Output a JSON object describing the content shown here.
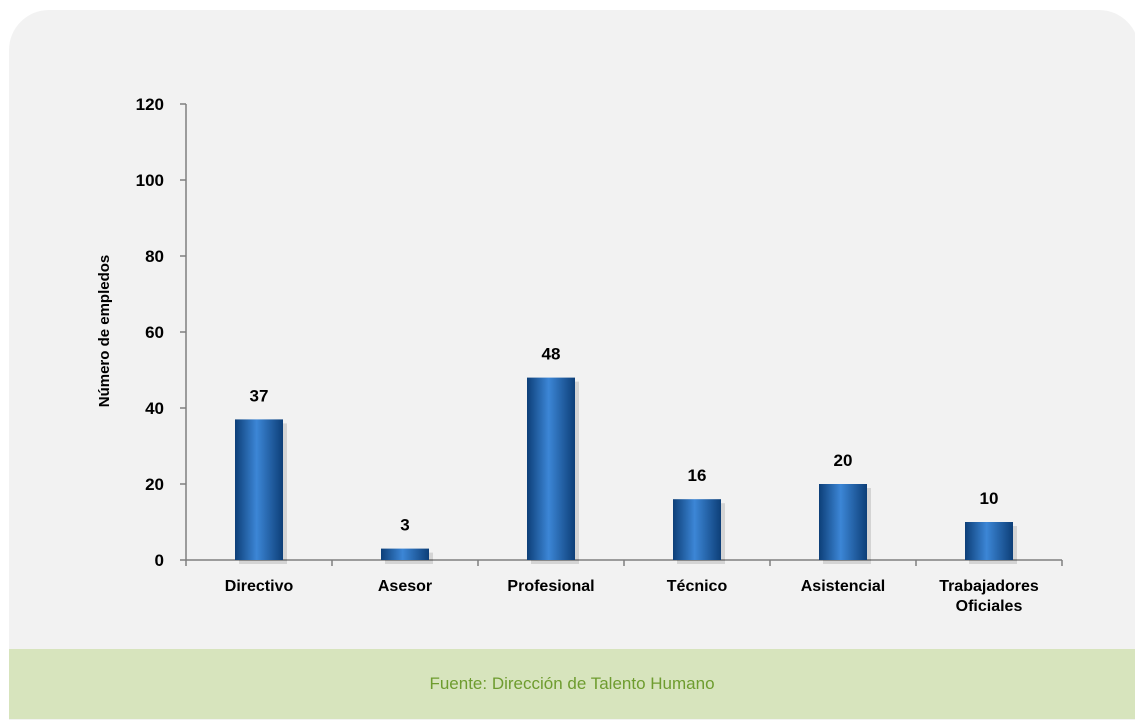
{
  "chart_data": {
    "type": "bar",
    "categories": [
      "Directivo",
      "Asesor",
      "Profesional",
      "Técnico",
      "Asistencial",
      "Trabajadores Oficiales"
    ],
    "values": [
      37,
      3,
      48,
      16,
      20,
      10
    ],
    "data_labels": [
      "37",
      "3",
      "48",
      "16",
      "20",
      "10"
    ],
    "xlabel": "",
    "ylabel": "Número de empledos",
    "ylim": [
      0,
      120
    ],
    "yticks": [
      0,
      20,
      40,
      60,
      80,
      100,
      120
    ],
    "grid": false,
    "legend": "none",
    "bar_color": "#1f5fa8"
  },
  "footer": {
    "source": "Fuente: Dirección de Talento Humano"
  },
  "colors": {
    "panel": "#f2f2f2",
    "footer_bg": "#d7e4bd",
    "footer_text": "#6e9c2f"
  }
}
